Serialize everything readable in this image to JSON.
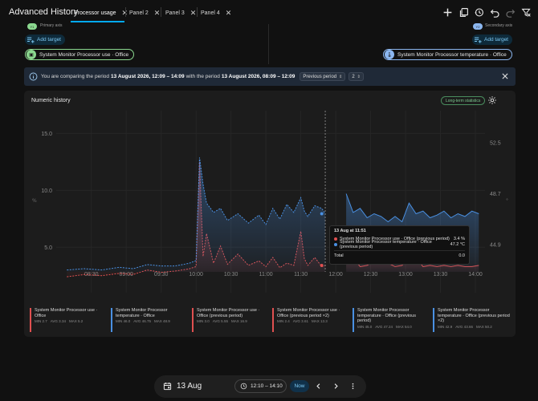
{
  "app": {
    "title": "Advanced History"
  },
  "tabs": [
    {
      "label": "Processor usage",
      "active": true
    },
    {
      "label": "Panel 2",
      "active": false
    },
    {
      "label": "Panel 3",
      "active": false
    },
    {
      "label": "Panel 4",
      "active": false
    }
  ],
  "toolbar_icons": [
    "add-icon",
    "copy-icon",
    "history-icon",
    "undo-icon",
    "redo-icon",
    "filter-off-icon"
  ],
  "axes": {
    "primary": {
      "chip": "Y1",
      "label": "Primary axis",
      "color": "#8bd88f"
    },
    "secondary": {
      "chip": "Y2",
      "label": "Secondary axis",
      "color": "#8cb7f0"
    }
  },
  "targets": {
    "add_label": "Add target",
    "left_entity": "System Monitor Processor use · Office",
    "right_entity": "System Monitor Processor temperature · Office"
  },
  "banner": {
    "prefix": "You are comparing the period",
    "period_a": "13 August 2026, 12:09 – 14:09",
    "middle": "with the period",
    "period_b": "13 August 2026, 08:09 – 12:09",
    "select_value": "Previous period",
    "stepper_value": "2"
  },
  "card": {
    "title": "Numeric history",
    "lts_label": "Long-term statistics"
  },
  "tooltip": {
    "title": "13 Aug at 11:51",
    "rows": [
      {
        "label": "System Monitor Processor use · Office (previous period)",
        "value": "3.4 %",
        "color": "#e05050"
      },
      {
        "label": "System Monitor Processor temperature · Office (previous period)",
        "value": "47.2 °C",
        "color": "#4a90e2"
      }
    ],
    "total_label": "Total",
    "total_value": "0.0"
  },
  "chart_data": {
    "type": "area",
    "x_ticks": [
      "08:30",
      "09:00",
      "09:30",
      "10:00",
      "10:30",
      "11:00",
      "11:30",
      "12:00",
      "12:30",
      "13:00",
      "13:30",
      "14:00"
    ],
    "y_left_ticks": [
      "5.0",
      "10.0",
      "15.0"
    ],
    "y_right_ticks": [
      "44.9",
      "48.7",
      "52.5"
    ],
    "y_left_range": [
      1.0,
      17.0
    ],
    "y_right_range": [
      41.3,
      54.9
    ],
    "colors": {
      "use": "#e05050",
      "temp": "#4a90e2"
    },
    "series": [
      {
        "name": "System Monitor Processor use · Office (previous period)",
        "axis": "left",
        "x": [
          8.15,
          8.4,
          8.65,
          8.9,
          9.1,
          9.3,
          9.5,
          9.7,
          9.9,
          10.0,
          10.05,
          10.1,
          10.15,
          10.25,
          10.35,
          10.45,
          10.6,
          10.75,
          10.9,
          11.0,
          11.1,
          11.2,
          11.3,
          11.4,
          11.5,
          11.55,
          11.6,
          11.7,
          11.8,
          11.85
        ],
        "values": [
          2.4,
          2.6,
          2.5,
          2.7,
          2.6,
          3.0,
          2.8,
          2.9,
          3.1,
          3.3,
          12.5,
          4.2,
          6.2,
          3.6,
          5.1,
          3.5,
          4.4,
          3.4,
          3.8,
          3.3,
          4.1,
          3.2,
          3.6,
          3.4,
          6.4,
          4.0,
          3.4,
          4.1,
          3.3,
          3.4
        ]
      },
      {
        "name": "System Monitor Processor temperature · Office (previous period)",
        "axis": "right",
        "x": [
          8.15,
          8.4,
          8.65,
          8.9,
          9.1,
          9.3,
          9.5,
          9.7,
          9.9,
          10.0,
          10.05,
          10.1,
          10.15,
          10.25,
          10.35,
          10.45,
          10.6,
          10.75,
          10.9,
          11.0,
          11.1,
          11.2,
          11.3,
          11.4,
          11.5,
          11.55,
          11.6,
          11.7,
          11.8,
          11.85
        ],
        "values": [
          43.0,
          43.1,
          43.0,
          43.2,
          43.1,
          43.4,
          43.3,
          43.3,
          43.5,
          43.7,
          51.4,
          49.4,
          48.0,
          47.3,
          47.6,
          46.7,
          47.2,
          46.5,
          47.1,
          46.4,
          47.6,
          46.8,
          47.9,
          47.3,
          48.4,
          47.4,
          47.0,
          47.8,
          47.6,
          47.2
        ]
      },
      {
        "name": "System Monitor Processor use · Office",
        "axis": "left",
        "x": [
          12.15,
          12.25,
          12.35,
          12.45,
          12.55,
          12.65,
          12.75,
          12.85,
          12.95,
          13.05,
          13.15,
          13.25,
          13.35,
          13.45,
          13.55,
          13.65,
          13.75,
          13.85,
          13.95,
          14.05
        ],
        "values": [
          3.5,
          4.1,
          3.3,
          3.4,
          3.8,
          5.5,
          3.6,
          3.3,
          3.4,
          4.2,
          4.1,
          3.3,
          3.4,
          3.3,
          3.4,
          3.3,
          3.4,
          3.3,
          3.3,
          3.4
        ]
      },
      {
        "name": "System Monitor Processor temperature · Office",
        "axis": "right",
        "x": [
          12.15,
          12.25,
          12.35,
          12.45,
          12.55,
          12.65,
          12.75,
          12.85,
          12.95,
          13.05,
          13.15,
          13.25,
          13.35,
          13.45,
          13.55,
          13.65,
          13.75,
          13.85,
          13.95,
          14.05
        ],
        "values": [
          48.7,
          47.3,
          47.6,
          46.9,
          47.2,
          47.0,
          46.6,
          47.0,
          46.6,
          48.0,
          47.2,
          47.4,
          46.9,
          47.1,
          47.4,
          46.9,
          47.2,
          47.0,
          47.4,
          47.2
        ]
      }
    ]
  },
  "stats": [
    {
      "name": "System Monitor Processor use · Office",
      "min": "MIN 2.7",
      "avg": "AVG 3.34",
      "max": "MAX 5.2",
      "color": "#e05050"
    },
    {
      "name": "System Monitor Processor temperature · Office",
      "min": "MIN 46.0",
      "avg": "AVG 46.75",
      "max": "MAX 48.9",
      "color": "#4a90e2"
    },
    {
      "name": "System Monitor Processor use · Office (previous period)",
      "min": "MIN 3.0",
      "avg": "AVG 5.55",
      "max": "MAX 16.9",
      "color": "#e05050"
    },
    {
      "name": "System Monitor Processor use · Office (previous period ×2)",
      "min": "MIN 2.4",
      "avg": "AVG 3.61",
      "max": "MAX 13.3",
      "color": "#e05050"
    },
    {
      "name": "System Monitor Processor temperature · Office (previous period)",
      "min": "MIN 45.0",
      "avg": "AVG 47.24",
      "max": "MAX 54.0",
      "color": "#4a90e2"
    },
    {
      "name": "System Monitor Processor temperature · Office (previous period ×2)",
      "min": "MIN 42.9",
      "avg": "AVG 43.66",
      "max": "MAX 50.2",
      "color": "#4a90e2"
    }
  ],
  "timebar": {
    "date": "13 Aug",
    "range": "12:10 – 14:10",
    "now_label": "Now"
  }
}
